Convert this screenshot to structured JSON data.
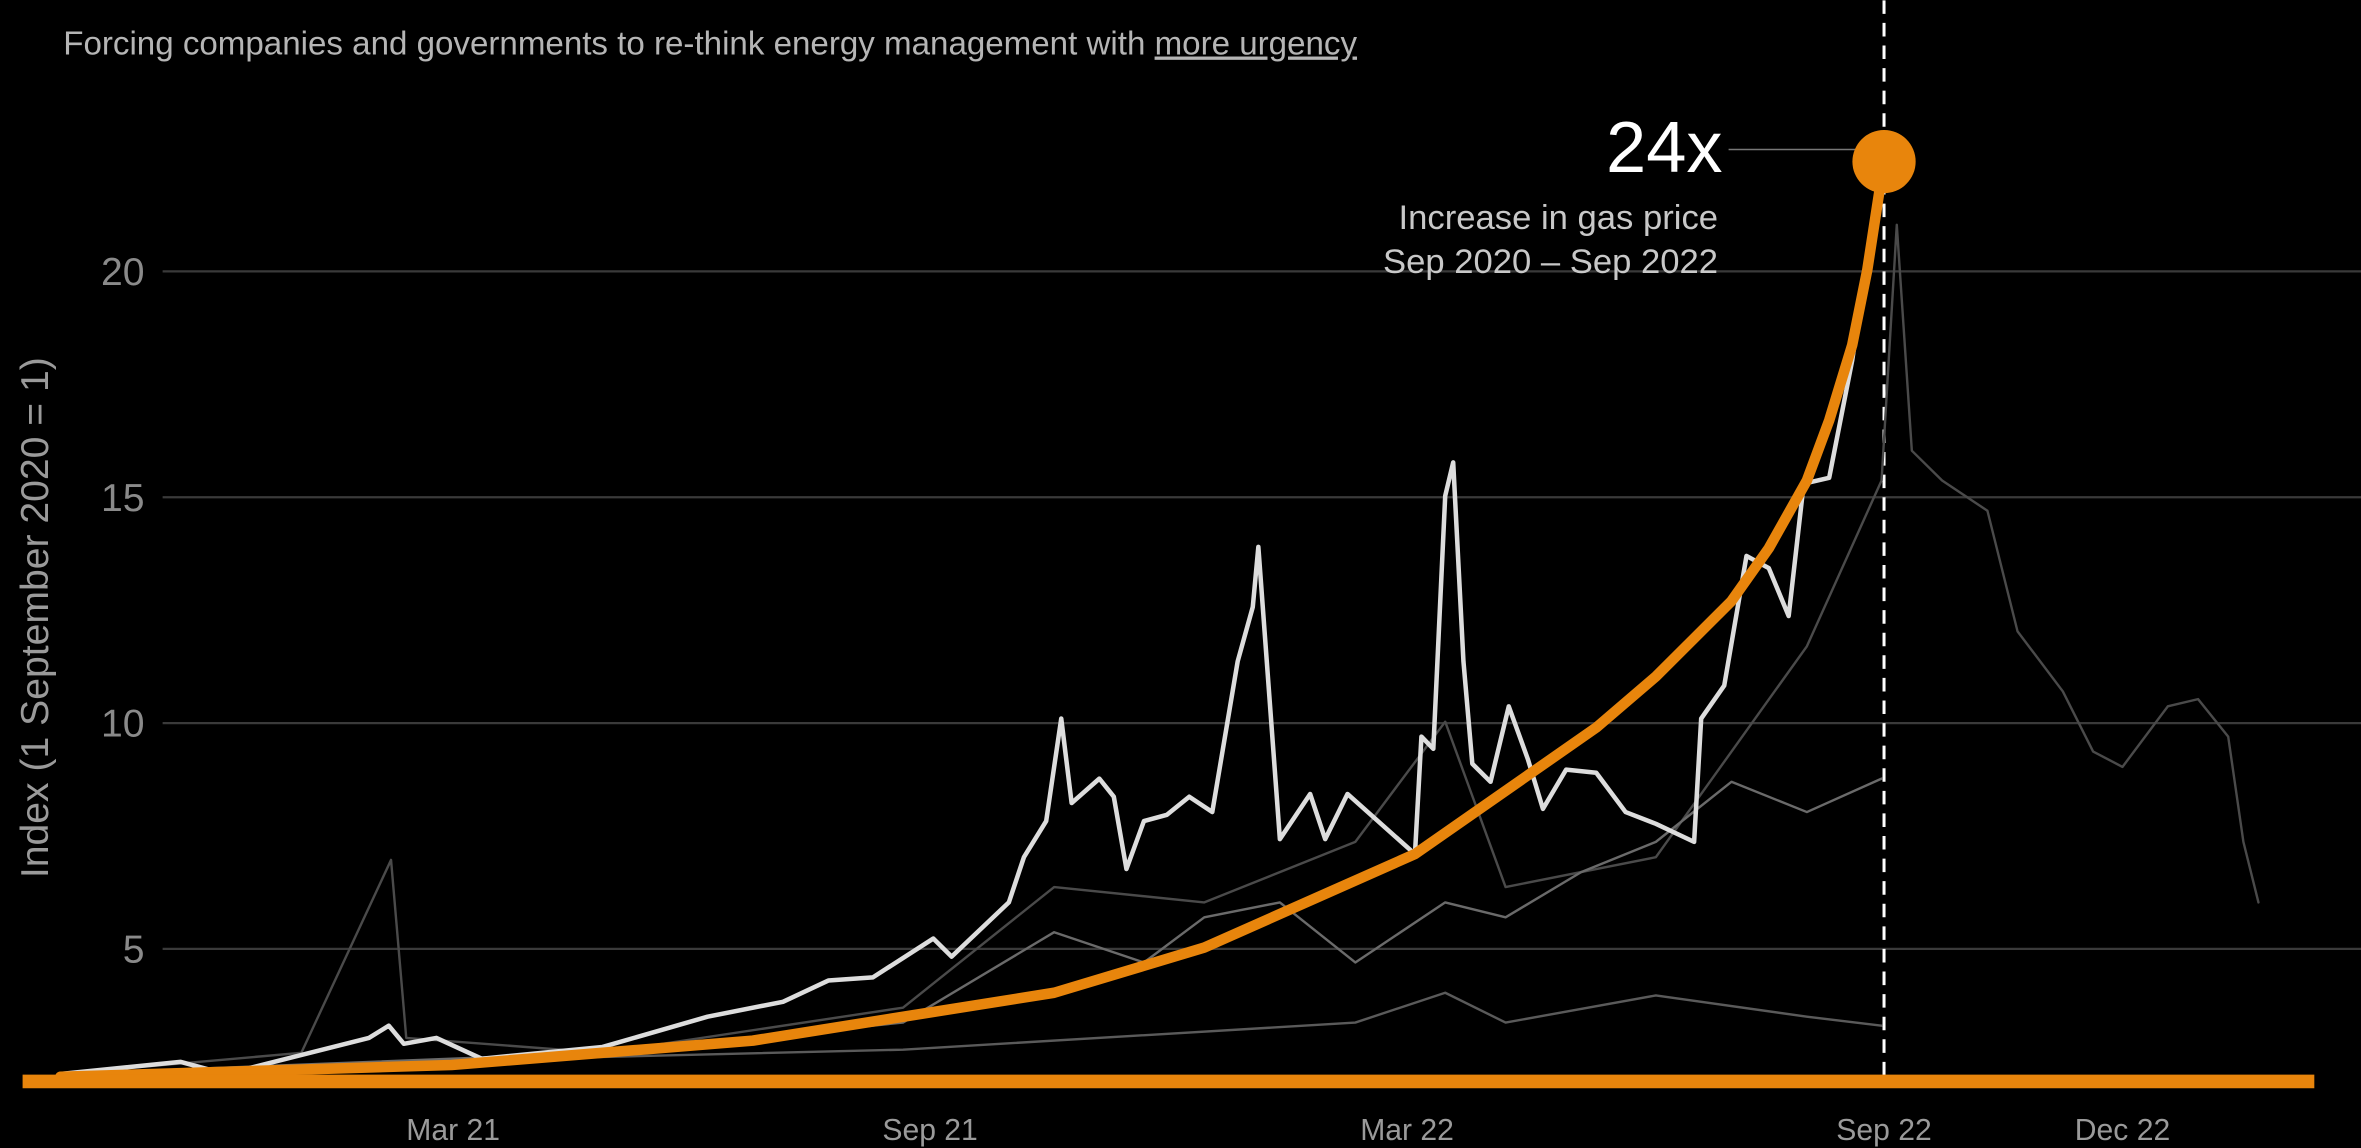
{
  "chart_data": {
    "type": "line",
    "subtitle": "Forcing companies and governments to re-think energy management with ",
    "subtitle_link": "more urgency",
    "ylabel": "Index (1 September 2020 = 1)",
    "annotation_value": "24x",
    "annotation_line1": "Increase in gas price",
    "annotation_line2": "Sep 2020 – Sep 2022",
    "vline": 24,
    "xlim": [
      0.3,
      30
    ],
    "ylim": [
      2,
      26
    ],
    "xticks": [
      {
        "value": 6,
        "label": "Mar 21"
      },
      {
        "value": 12,
        "label": "Sep 21"
      },
      {
        "value": 18,
        "label": "Mar 22"
      },
      {
        "value": 24,
        "label": "Sep 22"
      },
      {
        "value": 27,
        "label": "Dec 22"
      }
    ],
    "yticks": [
      5,
      10,
      15,
      20
    ],
    "grid": true,
    "series": [
      {
        "color": "#4a4a4a",
        "x": [
          1.06,
          4.09,
          5.22,
          5.41,
          7.88,
          11.66,
          13.56,
          15.45,
          17.35,
          18.48,
          19.24,
          21.13,
          23.03,
          23.97,
          24.16,
          24.35,
          24.73,
          25.3,
          25.68,
          26.25,
          26.63,
          27.0,
          27.57,
          27.95,
          28.33,
          28.52,
          28.71
        ],
        "values": [
          2.23,
          2.7,
          6.97,
          3.03,
          2.7,
          3.7,
          6.37,
          6.03,
          7.37,
          10.03,
          6.37,
          7.03,
          11.7,
          15.37,
          21.03,
          16.03,
          15.37,
          14.7,
          12.03,
          10.7,
          9.37,
          9.03,
          10.37,
          10.53,
          9.7,
          7.37,
          6.03
        ]
      },
      {
        "color": "#5a5a5a",
        "x": [
          1.06,
          6.02,
          11.66,
          17.35,
          18.48,
          19.24,
          21.13,
          23.03,
          23.97
        ],
        "values": [
          2.23,
          2.53,
          2.77,
          3.37,
          4.03,
          3.37,
          3.97,
          3.5,
          3.3
        ]
      },
      {
        "color": "#6a6a6a",
        "x": [
          1.06,
          7.88,
          11.66,
          13.56,
          14.69,
          15.45,
          16.4,
          17.35,
          18.48,
          19.24,
          20.19,
          21.13,
          22.08,
          23.03,
          23.97
        ],
        "values": [
          2.23,
          2.7,
          3.37,
          5.37,
          4.7,
          5.7,
          6.03,
          4.7,
          6.03,
          5.7,
          6.7,
          7.37,
          8.7,
          8.03,
          8.77
        ]
      },
      {
        "color": "#dddddd",
        "x": [
          1.06,
          2.57,
          3.14,
          4.94,
          5.19,
          5.38,
          5.79,
          6.36,
          7.88,
          9.2,
          10.15,
          10.72,
          11.28,
          12.04,
          12.27,
          12.99,
          13.18,
          13.46,
          13.65,
          13.78,
          14.13,
          14.31,
          14.47,
          14.69,
          14.98,
          15.26,
          15.55,
          15.87,
          16.06,
          16.13,
          16.4,
          16.78,
          16.97,
          17.25,
          18.1,
          18.18,
          18.33,
          18.48,
          18.58,
          18.71,
          18.82,
          19.05,
          19.28,
          19.52,
          19.71,
          20.0,
          20.38,
          20.75,
          21.13,
          21.61,
          21.7,
          21.99,
          22.27,
          22.55,
          22.8,
          22.99,
          23.31,
          23.6,
          23.88
        ],
        "values": [
          2.23,
          2.5,
          2.23,
          3.03,
          3.3,
          2.9,
          3.03,
          2.57,
          2.83,
          3.5,
          3.83,
          4.3,
          4.37,
          5.23,
          4.83,
          6.03,
          7.03,
          7.83,
          10.1,
          8.23,
          8.77,
          8.37,
          6.77,
          7.83,
          7.97,
          8.37,
          8.03,
          11.37,
          12.57,
          13.9,
          7.43,
          8.43,
          7.43,
          8.43,
          7.1,
          9.7,
          9.43,
          15.03,
          15.77,
          11.37,
          9.1,
          8.7,
          10.37,
          9.2,
          8.1,
          8.97,
          8.9,
          8.03,
          7.77,
          7.37,
          10.1,
          10.83,
          13.7,
          13.43,
          12.37,
          15.3,
          15.43,
          18.03,
          21.37
        ]
      },
      {
        "color": "#e8850c",
        "highlight": true,
        "x": [
          1.06,
          5.98,
          9.77,
          13.56,
          15.45,
          18.1,
          20.38,
          21.13,
          22.08,
          22.55,
          23.03,
          23.31,
          23.6,
          23.79,
          24
        ],
        "values": [
          2.17,
          2.43,
          2.97,
          4.03,
          5.03,
          7.1,
          9.9,
          11.03,
          12.7,
          13.87,
          15.37,
          16.7,
          18.37,
          20.03,
          22.43
        ]
      }
    ]
  }
}
